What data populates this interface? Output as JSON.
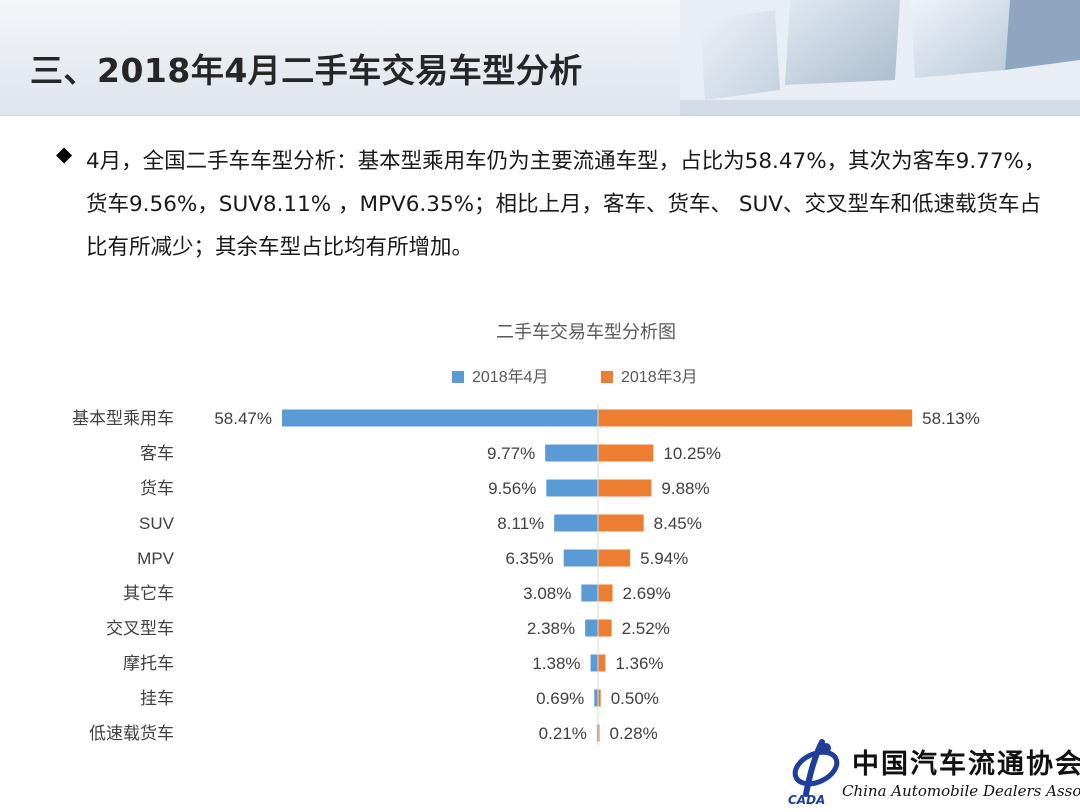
{
  "header": {
    "title": "三、2018年4月二手车交易车型分析"
  },
  "summary": {
    "bullet_icon": "diamond-bullet-icon",
    "text": "4月，全国二手车车型分析：基本型乘用车仍为主要流通车型，占比为58.47%，其次为客车9.77%，货车9.56%，SUV8.11% ，MPV6.35%；相比上月，客车、货车、 SUV、交叉型车和低速载货车占比有所减少；其余车型占比均有所增加。"
  },
  "chart_data": {
    "type": "bar",
    "orientation": "horizontal-butterfly",
    "title": "二手车交易车型分析图",
    "legend_position": "top",
    "grid": false,
    "categories": [
      "基本型乘用车",
      "客车",
      "货车",
      "SUV",
      "MPV",
      "其它车",
      "交叉型车",
      "摩托车",
      "挂车",
      "低速载货车"
    ],
    "series": [
      {
        "name": "2018年4月",
        "color": "#5b9bd5",
        "values": [
          58.47,
          9.77,
          9.56,
          8.11,
          6.35,
          3.08,
          2.38,
          1.38,
          0.69,
          0.21
        ],
        "labels": [
          "58.47%",
          "9.77%",
          "9.56%",
          "8.11%",
          "6.35%",
          "3.08%",
          "2.38%",
          "1.38%",
          "0.69%",
          "0.21%"
        ]
      },
      {
        "name": "2018年3月",
        "color": "#ed7d31",
        "values": [
          58.13,
          10.25,
          9.88,
          8.45,
          5.94,
          2.69,
          2.52,
          1.36,
          0.5,
          0.28
        ],
        "labels": [
          "58.13%",
          "10.25%",
          "9.88%",
          "8.45%",
          "5.94%",
          "2.69%",
          "2.52%",
          "1.36%",
          "0.50%",
          "0.28%"
        ]
      }
    ],
    "xlim": [
      0,
      60
    ]
  },
  "logo": {
    "cn_text": "中国汽车流通协会",
    "en_text": "China Automobile Dealers Association",
    "abbr": "CADA",
    "icon": "cada-logo-icon"
  }
}
